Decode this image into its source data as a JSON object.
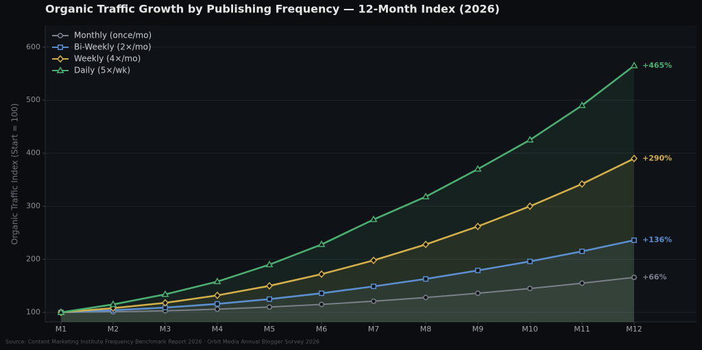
{
  "chart_data": {
    "type": "line",
    "title": "Organic Traffic Growth by Publishing Frequency — 12-Month Index (2026)",
    "y_label": "Organic Traffic Index (Start = 100)",
    "source": "Source: Content Marketing Institute Frequency Benchmark Report 2026 · Orbit Media Annual Blogger Survey 2026",
    "categories": [
      "M1",
      "M2",
      "M3",
      "M4",
      "M5",
      "M6",
      "M7",
      "M8",
      "M9",
      "M10",
      "M11",
      "M12"
    ],
    "ylim": [
      82,
      641
    ],
    "yticks": [
      100,
      200,
      300,
      400,
      500,
      600
    ],
    "grid": true,
    "legend": "upper left",
    "fill_area": true,
    "series": [
      {
        "name": "Monthly (once/mo)",
        "color": "#7c8189",
        "marker": "circle",
        "end_label": "+66%",
        "values": [
          100,
          101,
          103,
          106,
          110,
          115,
          121,
          128,
          136,
          145,
          155,
          166
        ]
      },
      {
        "name": "Bi-Weekly (2×/mo)",
        "color": "#5b8fd0",
        "marker": "square",
        "end_label": "+136%",
        "values": [
          100,
          104,
          109,
          116,
          125,
          136,
          149,
          163,
          179,
          196,
          215,
          236
        ]
      },
      {
        "name": "Weekly (4×/mo)",
        "color": "#d4b04a",
        "marker": "diamond",
        "end_label": "+290%",
        "values": [
          100,
          108,
          118,
          132,
          150,
          172,
          198,
          228,
          262,
          300,
          342,
          390
        ]
      },
      {
        "name": "Daily (5×/wk)",
        "color": "#4caf72",
        "marker": "triangle",
        "end_label": "+465%",
        "values": [
          100,
          115,
          134,
          158,
          190,
          228,
          275,
          318,
          370,
          425,
          490,
          565
        ]
      }
    ]
  }
}
